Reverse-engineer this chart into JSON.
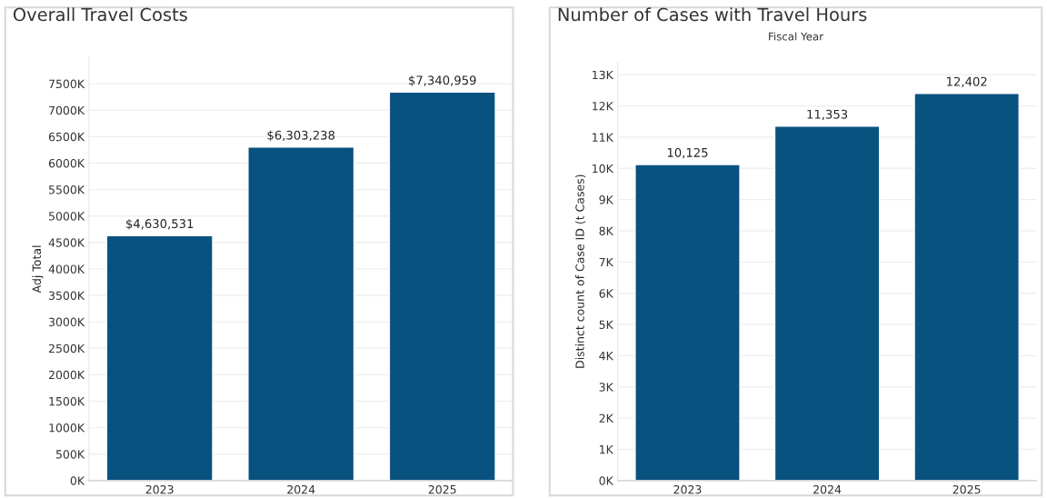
{
  "chart_data": [
    {
      "type": "bar",
      "title": "Overall Travel Costs",
      "ylabel": "Adj Total",
      "categories": [
        "2023",
        "2024",
        "2025"
      ],
      "values": [
        4630531,
        6303238,
        7340959
      ],
      "value_labels": [
        "$4,630,531",
        "$6,303,238",
        "$7,340,959"
      ],
      "color": "#08527f",
      "ylim": [
        0,
        8000000
      ],
      "yticks": [
        {
          "value": 0,
          "label": "0K"
        },
        {
          "value": 500000,
          "label": "500K"
        },
        {
          "value": 1000000,
          "label": "1000K"
        },
        {
          "value": 1500000,
          "label": "1500K"
        },
        {
          "value": 2000000,
          "label": "2000K"
        },
        {
          "value": 2500000,
          "label": "2500K"
        },
        {
          "value": 3000000,
          "label": "3000K"
        },
        {
          "value": 3500000,
          "label": "3500K"
        },
        {
          "value": 4000000,
          "label": "4000K"
        },
        {
          "value": 4500000,
          "label": "4500K"
        },
        {
          "value": 5000000,
          "label": "5000K"
        },
        {
          "value": 5500000,
          "label": "5500K"
        },
        {
          "value": 6000000,
          "label": "6000K"
        },
        {
          "value": 6500000,
          "label": "6500K"
        },
        {
          "value": 7000000,
          "label": "7000K"
        },
        {
          "value": 7500000,
          "label": "7500K"
        }
      ],
      "grid": "y"
    },
    {
      "type": "bar",
      "title": "Number of Cases with Travel Hours",
      "subtitle": "Fiscal Year",
      "ylabel": "Distinct count of Case ID (t Cases)",
      "categories": [
        "2023",
        "2024",
        "2025"
      ],
      "values": [
        10125,
        11353,
        12402
      ],
      "value_labels": [
        "10,125",
        "11,353",
        "12,402"
      ],
      "color": "#08527f",
      "ylim": [
        0,
        13400
      ],
      "yticks": [
        {
          "value": 0,
          "label": "0K"
        },
        {
          "value": 1000,
          "label": "1K"
        },
        {
          "value": 2000,
          "label": "2K"
        },
        {
          "value": 3000,
          "label": "3K"
        },
        {
          "value": 4000,
          "label": "4K"
        },
        {
          "value": 5000,
          "label": "5K"
        },
        {
          "value": 6000,
          "label": "6K"
        },
        {
          "value": 7000,
          "label": "7K"
        },
        {
          "value": 8000,
          "label": "8K"
        },
        {
          "value": 9000,
          "label": "9K"
        },
        {
          "value": 10000,
          "label": "10K"
        },
        {
          "value": 11000,
          "label": "11K"
        },
        {
          "value": 12000,
          "label": "12K"
        },
        {
          "value": 13000,
          "label": "13K"
        }
      ],
      "grid": "y"
    }
  ]
}
